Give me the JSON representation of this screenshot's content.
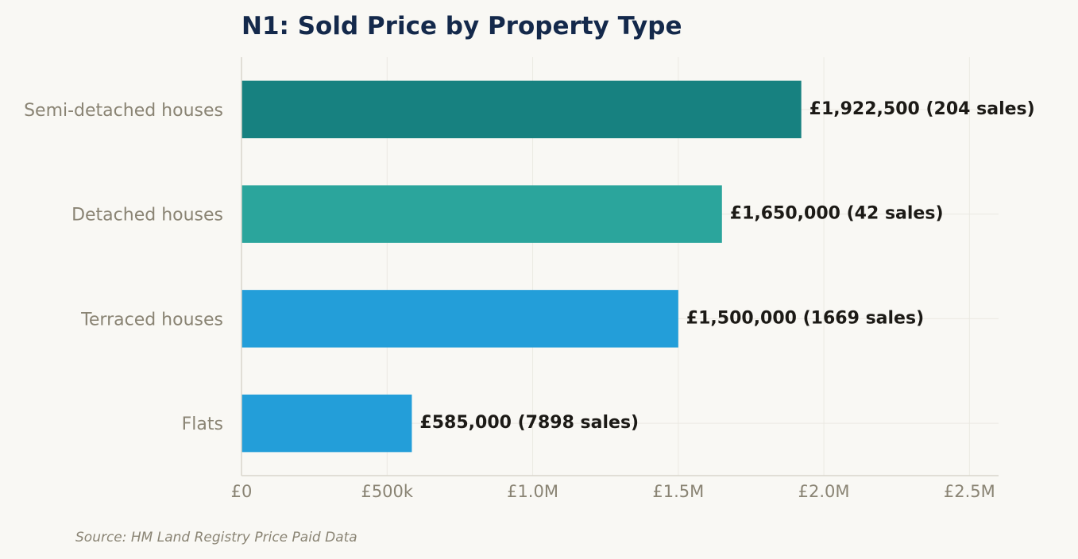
{
  "chart_data": {
    "type": "bar",
    "orientation": "horizontal",
    "title": "N1: Sold Price by Property Type",
    "categories": [
      "Semi-detached houses",
      "Detached houses",
      "Terraced houses",
      "Flats"
    ],
    "values": [
      1922500,
      1650000,
      1500000,
      585000
    ],
    "sales": [
      204,
      42,
      1669,
      7898
    ],
    "data_labels": [
      "£1,922,500  (204 sales)",
      "£1,650,000  (42 sales)",
      "£1,500,000  (1669 sales)",
      "£585,000  (7898 sales)"
    ],
    "bar_colors": [
      "#178180",
      "#2ba59c",
      "#239ed9",
      "#239ed9"
    ],
    "xlim": [
      0,
      2600000
    ],
    "xticks": [
      0,
      500000,
      1000000,
      1500000,
      2000000,
      2500000
    ],
    "xtick_labels": [
      "£0",
      "£500k",
      "£1.0M",
      "£1.5M",
      "£2.0M",
      "£2.5M"
    ],
    "xlabel": "",
    "ylabel": "",
    "grid": true,
    "source": "Source: HM Land Registry Price Paid Data"
  }
}
